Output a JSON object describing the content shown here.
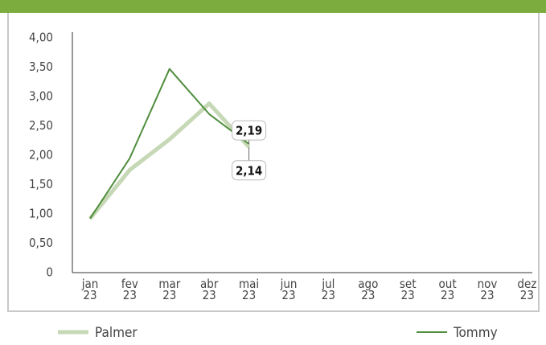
{
  "chart_data": {
    "type": "line",
    "categories": [
      "jan\n23",
      "fev\n23",
      "mar\n23",
      "abr\n23",
      "mai\n23",
      "jun\n23",
      "jul\n23",
      "ago\n23",
      "set\n23",
      "out\n23",
      "nov\n23",
      "dez\n23"
    ],
    "series": [
      {
        "name": "Palmer",
        "color": "#c6d8b5",
        "width": 5,
        "values": [
          0.92,
          1.75,
          2.27,
          2.88,
          2.14,
          null,
          null,
          null,
          null,
          null,
          null,
          null
        ],
        "value_labels": [
          null,
          null,
          null,
          null,
          "2,14",
          null,
          null,
          null,
          null,
          null,
          null,
          null
        ]
      },
      {
        "name": "Tommy",
        "color": "#4f8d3d",
        "width": 2,
        "values": [
          0.92,
          1.95,
          3.47,
          2.7,
          2.19,
          null,
          null,
          null,
          null,
          null,
          null,
          null
        ],
        "value_labels": [
          null,
          null,
          null,
          null,
          "2,19",
          null,
          null,
          null,
          null,
          null,
          null,
          null
        ]
      }
    ],
    "ylim": [
      0,
      4
    ],
    "yticks": [
      0,
      {
        "value": 0.5,
        "label": "0,50"
      },
      {
        "value": 1,
        "label": "1,00"
      },
      {
        "value": 1.5,
        "label": "1,50"
      },
      {
        "value": 2,
        "label": "2,00"
      },
      {
        "value": 2.5,
        "label": "2,50"
      },
      {
        "value": 3,
        "label": "3,00"
      },
      {
        "value": 3.5,
        "label": "3,50"
      },
      {
        "value": 4,
        "label": "4,00"
      }
    ],
    "grid": false,
    "legend": "bottom"
  }
}
